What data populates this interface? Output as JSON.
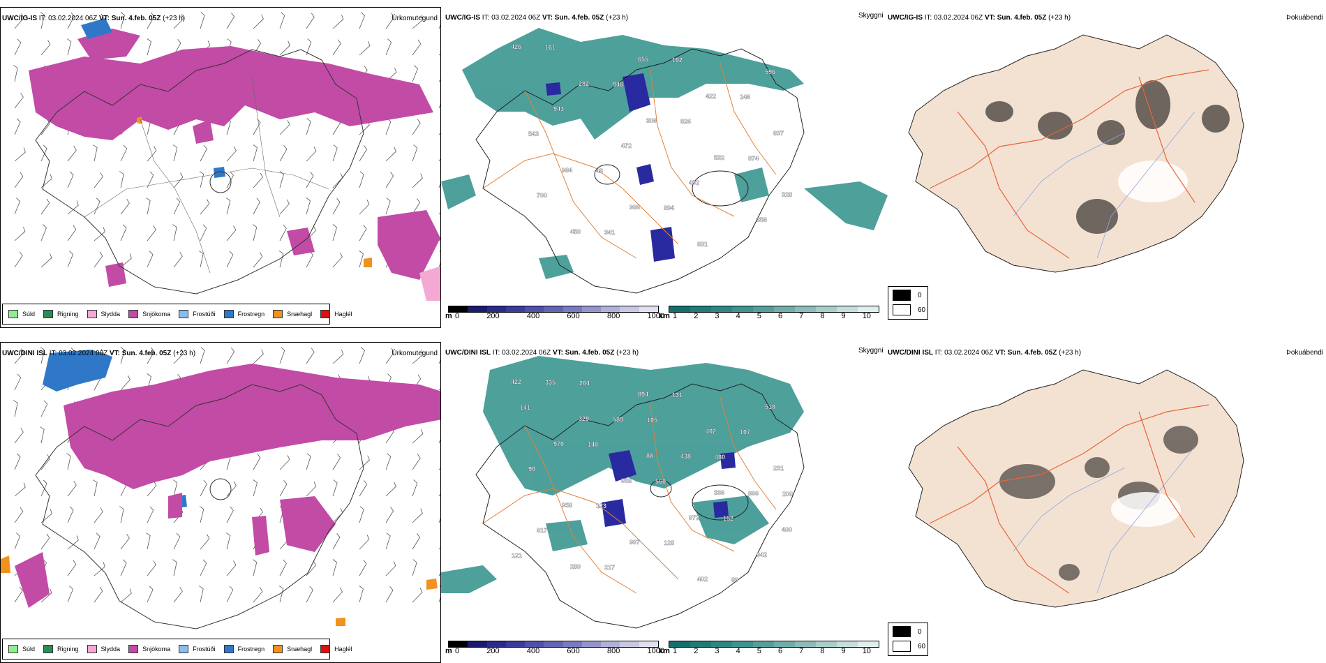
{
  "rows": [
    {
      "model": "UWC/IG-IS",
      "it_label": "IT:",
      "it_value": "03.02.2024 06Z",
      "vt_label": "VT:",
      "vt_value": "Sun. 4.feb. 05Z",
      "lead": "(+23 h)"
    },
    {
      "model": "UWC/DINI ISL",
      "it_label": "IT:",
      "it_value": "03.02.2024 06Z",
      "vt_label": "VT:",
      "vt_value": "Sun. 4.feb. 05Z",
      "lead": "(+23 h)"
    }
  ],
  "panel_titles": {
    "precip": "Úrkomutegund",
    "ceiling": "Skyggni",
    "fog": "Þokuábendi"
  },
  "precip_legend": [
    {
      "label": "Súld",
      "color": "#90ee90"
    },
    {
      "label": "Rigning",
      "color": "#2e8b57"
    },
    {
      "label": "Slydda",
      "color": "#f4a8d4"
    },
    {
      "label": "Snjókoma",
      "color": "#c24ba6"
    },
    {
      "label": "Frostúði",
      "color": "#87bdf0"
    },
    {
      "label": "Frostregn",
      "color": "#2f78c8"
    },
    {
      "label": "Snæhagl",
      "color": "#f0921e"
    },
    {
      "label": "Haglél",
      "color": "#e01010"
    }
  ],
  "ceiling_scale": {
    "unit": "m",
    "ticks": [
      "0",
      "200",
      "400",
      "600",
      "800",
      "1000"
    ],
    "colors": [
      "#000000",
      "#1a1a6e",
      "#2a2a8a",
      "#3b3b9c",
      "#5050aa",
      "#6464b4",
      "#7a7ac0",
      "#9494cc",
      "#b0b0d8",
      "#c8c8e4",
      "#e0e0f0"
    ]
  },
  "visibility_scale": {
    "unit": "km",
    "ticks": [
      "1",
      "2",
      "3",
      "4",
      "5",
      "6",
      "7",
      "8",
      "9",
      "10"
    ],
    "colors": [
      "#136e6e",
      "#1f7a78",
      "#2d8683",
      "#3f928e",
      "#569e9a",
      "#70aca8",
      "#8cbcb8",
      "#a8cecb",
      "#c4dfdc",
      "#e0efee"
    ]
  },
  "fog_legend": [
    {
      "label": "0",
      "color": "#000000"
    },
    {
      "label": "60",
      "color": "#ffffff"
    }
  ],
  "ceiling_labels_top": [
    "426",
    "282",
    "306",
    "532",
    "328",
    "450",
    "655",
    "422",
    "837",
    "984",
    "986",
    "831",
    "596",
    "943",
    "472",
    "492",
    "356",
    "161",
    "946",
    "826",
    "874",
    "700",
    "341",
    "102",
    "146",
    "543",
    "43",
    "894"
  ],
  "ceiling_labels_bottom": [
    "422",
    "329",
    "88",
    "336",
    "400",
    "280",
    "894",
    "402",
    "231",
    "958",
    "967",
    "402",
    "518",
    "970",
    "958",
    "972",
    "942",
    "335",
    "589",
    "438",
    "866",
    "617",
    "217",
    "131",
    "107",
    "90",
    "123",
    "128",
    "89",
    "141",
    "148",
    "560",
    "152",
    "121",
    "204",
    "105",
    "480",
    "200"
  ],
  "colors": {
    "snow": "#c24ba6",
    "ceiling_teal": "#2f8f8a",
    "ceiling_blue": "#2a2aa0",
    "roads": "#e0823a",
    "fog_land": "#f3e2d2",
    "fog_rivers": "#8fa6e8",
    "fog_roads": "#e8643a"
  }
}
